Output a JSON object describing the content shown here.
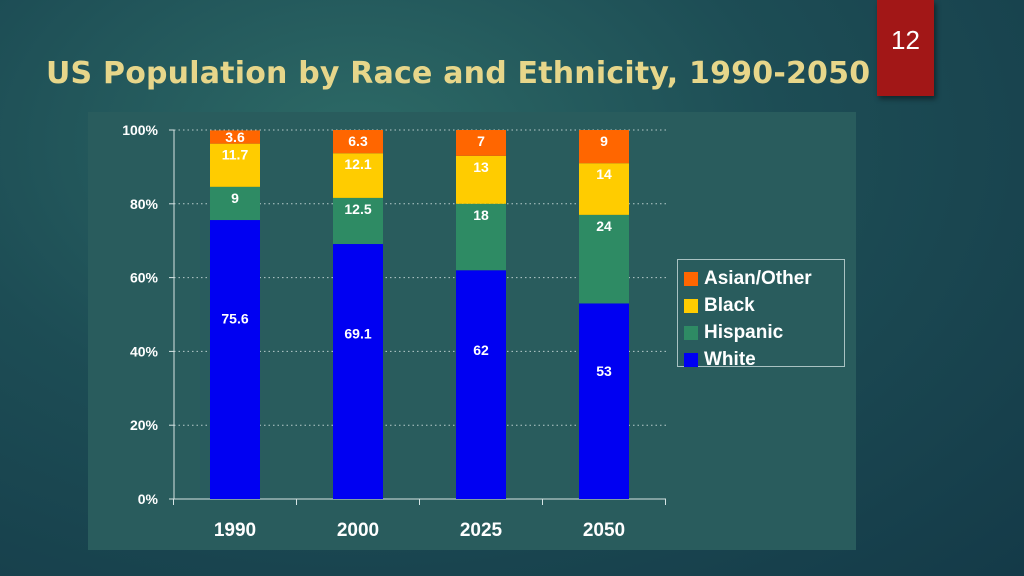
{
  "slide": {
    "title": "US Population by Race and Ethnicity, 1990-2050",
    "page_number": "12"
  },
  "colors": {
    "title": "#e7d68a",
    "page_badge": "#a21717",
    "panel": "#295c5d",
    "white_series": "#0000f2",
    "hispanic_series": "#2e8b64",
    "black_series": "#ffcc00",
    "asian_other_series": "#ff6600"
  },
  "chart_data": {
    "type": "bar",
    "stacked": true,
    "title": "",
    "xlabel": "",
    "ylabel": "",
    "categories": [
      "1990",
      "2000",
      "2025",
      "2050"
    ],
    "ylim": [
      0,
      100
    ],
    "yticks": [
      "0%",
      "20%",
      "40%",
      "60%",
      "80%",
      "100%"
    ],
    "grid": "dotted-horizontal",
    "legend_position": "right",
    "series": [
      {
        "name": "White",
        "color": "#0000f2",
        "label_color": "#ffffff",
        "values": [
          75.6,
          69.1,
          62,
          53
        ],
        "labels": [
          "75.6",
          "69.1",
          "62",
          "53"
        ]
      },
      {
        "name": "Hispanic",
        "color": "#2e8b64",
        "label_color": "#ffffff",
        "values": [
          9,
          12.5,
          18,
          24
        ],
        "labels": [
          "9",
          "12.5",
          "18",
          "24"
        ]
      },
      {
        "name": "Black",
        "color": "#ffcc00",
        "label_color": "#ffffff",
        "values": [
          11.7,
          12.1,
          13,
          14
        ],
        "labels": [
          "11.7",
          "12.1",
          "13",
          "14"
        ]
      },
      {
        "name": "Asian/Other",
        "color": "#ff6600",
        "label_color": "#ffffff",
        "values": [
          3.6,
          6.3,
          7,
          9
        ],
        "labels": [
          "3.6",
          "6.3",
          "7",
          "9"
        ]
      }
    ],
    "legend_order": [
      "Asian/Other",
      "Black",
      "Hispanic",
      "White"
    ]
  }
}
